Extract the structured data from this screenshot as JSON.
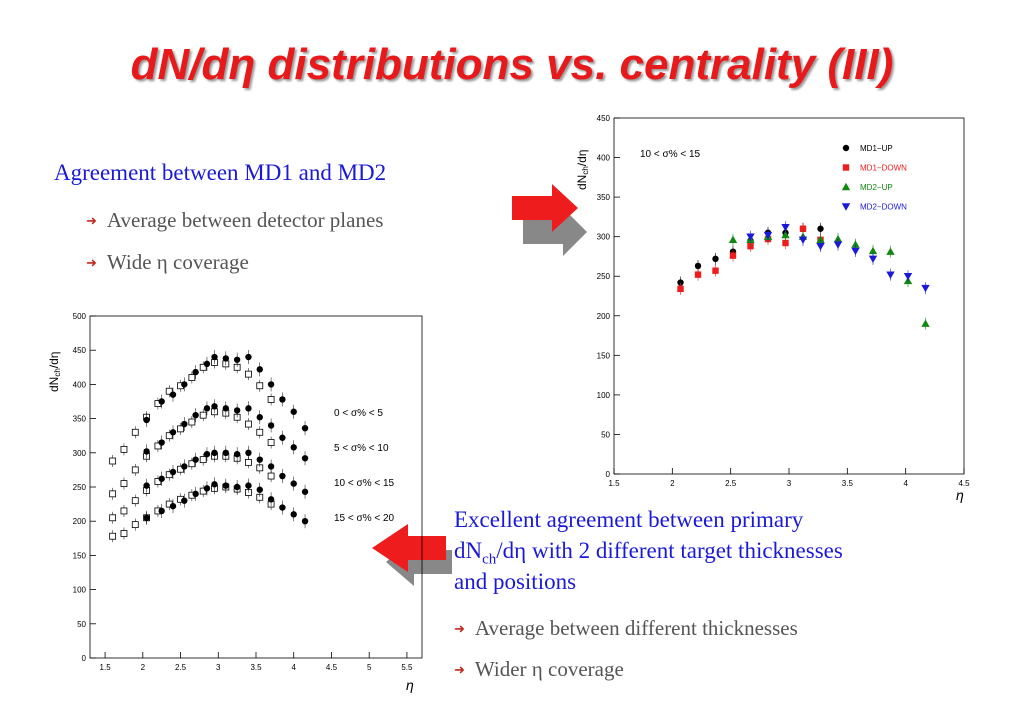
{
  "slide": {
    "title": "dN/dη distributions vs. centrality (III)",
    "text1": {
      "heading": "Agreement between MD1 and MD2",
      "bullets": [
        "Average between detector planes",
        "Wide η coverage"
      ]
    },
    "text2": {
      "heading_line1": "Excellent agreement between primary",
      "heading_line2_a": "dN",
      "heading_line2_sub": "ch",
      "heading_line2_b": "/dη with 2 different target thicknesses",
      "heading_line3": "and positions",
      "bullets": [
        "Average between different thicknesses",
        "Wider η coverage"
      ]
    },
    "colors": {
      "title": "#e8191a",
      "heading": "#1a1ad6",
      "bullet_text": "#555555",
      "arrow": "#ee1c1c",
      "arrow_shadow": "#888888"
    }
  },
  "chart_data": [
    {
      "type": "scatter",
      "ylabel_main": "dN",
      "ylabel_sub": "ch",
      "ylabel_tail": "/dη",
      "xlabel": "η",
      "xlim": [
        1.5,
        4.5
      ],
      "ylim": [
        0,
        450
      ],
      "xticks": [
        1.5,
        2,
        2.5,
        3,
        3.5,
        4,
        4.5
      ],
      "xtick_labels": [
        "1.5",
        "2",
        "2.5",
        "3",
        "3.5",
        "4",
        "4.5"
      ],
      "yticks": [
        0,
        50,
        100,
        150,
        200,
        250,
        300,
        350,
        400,
        450
      ],
      "ytick_labels": [
        "0",
        "50",
        "100",
        "150",
        "200",
        "250",
        "300",
        "350",
        "400",
        "450"
      ],
      "annotation": "10 < σ% < 15",
      "legend_position": "top-right",
      "series": [
        {
          "name": "MD1−UP",
          "color": "#000000",
          "marker": "circle",
          "x": [
            2.07,
            2.22,
            2.37,
            2.52,
            2.67,
            2.82,
            2.97,
            3.12,
            3.27
          ],
          "y": [
            242,
            263,
            272,
            281,
            295,
            305,
            305,
            310,
            310
          ]
        },
        {
          "name": "MD1−DOWN",
          "color": "#ee1c1c",
          "marker": "square",
          "x": [
            2.07,
            2.22,
            2.37,
            2.52,
            2.67,
            2.82,
            2.97,
            3.12,
            3.27
          ],
          "y": [
            234,
            252,
            257,
            276,
            288,
            297,
            292,
            310,
            296
          ]
        },
        {
          "name": "MD2−UP",
          "color": "#118811",
          "marker": "triangle-up",
          "x": [
            2.52,
            2.67,
            2.82,
            2.97,
            3.12,
            3.27,
            3.42,
            3.57,
            3.72,
            3.87,
            4.02,
            4.17
          ],
          "y": [
            296,
            296,
            300,
            302,
            300,
            296,
            297,
            290,
            282,
            281,
            244,
            190
          ]
        },
        {
          "name": "MD2−DOWN",
          "color": "#1a1ad6",
          "marker": "triangle-down",
          "x": [
            2.67,
            2.82,
            2.97,
            3.12,
            3.27,
            3.42,
            3.57,
            3.72,
            3.87,
            4.02,
            4.17
          ],
          "y": [
            300,
            302,
            312,
            296,
            288,
            290,
            282,
            272,
            252,
            250,
            235
          ]
        }
      ]
    },
    {
      "type": "scatter",
      "ylabel_main": "dN",
      "ylabel_sub": "ch",
      "ylabel_tail": "/dη",
      "xlabel": "η",
      "xlim": [
        1.3,
        5.7
      ],
      "ylim": [
        0,
        500
      ],
      "xticks": [
        1.5,
        2,
        2.5,
        3,
        3.5,
        4,
        4.5,
        5,
        5.5
      ],
      "xtick_labels": [
        "1.5",
        "2",
        "2.5",
        "3",
        "3.5",
        "4",
        "4.5",
        "5",
        "5.5"
      ],
      "yticks": [
        0,
        50,
        100,
        150,
        200,
        250,
        300,
        350,
        400,
        450,
        500
      ],
      "ytick_labels": [
        "0",
        "50",
        "100",
        "150",
        "200",
        "250",
        "300",
        "350",
        "400",
        "450",
        "500"
      ],
      "series": [
        {
          "name": "0 < σ% < 5",
          "open_x": [
            1.6,
            1.75,
            1.9,
            2.05,
            2.2,
            2.35,
            2.5,
            2.65,
            2.8,
            2.95,
            3.1,
            3.25,
            3.4,
            3.55,
            3.7
          ],
          "open_y": [
            288,
            305,
            330,
            352,
            372,
            390,
            398,
            410,
            425,
            432,
            430,
            425,
            415,
            398,
            378
          ],
          "filled_x": [
            2.05,
            2.25,
            2.4,
            2.55,
            2.7,
            2.85,
            2.95,
            3.1,
            3.25,
            3.4,
            3.55,
            3.7,
            3.85,
            4.0,
            4.15
          ],
          "filled_y": [
            348,
            375,
            385,
            400,
            418,
            430,
            440,
            438,
            436,
            440,
            422,
            400,
            378,
            360,
            336
          ]
        },
        {
          "name": "5 < σ% < 10",
          "open_x": [
            1.6,
            1.75,
            1.9,
            2.05,
            2.2,
            2.35,
            2.5,
            2.65,
            2.8,
            2.95,
            3.1,
            3.25,
            3.4,
            3.55,
            3.7
          ],
          "open_y": [
            240,
            255,
            275,
            295,
            310,
            325,
            335,
            345,
            355,
            360,
            358,
            352,
            342,
            330,
            315
          ],
          "filled_x": [
            2.05,
            2.25,
            2.4,
            2.55,
            2.7,
            2.85,
            2.95,
            3.1,
            3.25,
            3.4,
            3.55,
            3.7,
            3.85,
            4.0,
            4.15
          ],
          "filled_y": [
            302,
            315,
            330,
            342,
            355,
            365,
            368,
            365,
            362,
            365,
            352,
            340,
            322,
            308,
            292
          ]
        },
        {
          "name": "10 < σ% < 15",
          "open_x": [
            1.6,
            1.75,
            1.9,
            2.05,
            2.2,
            2.35,
            2.5,
            2.65,
            2.8,
            2.95,
            3.1,
            3.25,
            3.4,
            3.55,
            3.7
          ],
          "open_y": [
            205,
            215,
            230,
            245,
            258,
            268,
            276,
            284,
            290,
            295,
            295,
            292,
            286,
            278,
            266
          ],
          "filled_x": [
            2.05,
            2.25,
            2.4,
            2.55,
            2.7,
            2.85,
            2.95,
            3.1,
            3.25,
            3.4,
            3.55,
            3.7,
            3.85,
            4.0,
            4.15
          ],
          "filled_y": [
            252,
            262,
            272,
            280,
            290,
            298,
            300,
            300,
            298,
            300,
            290,
            280,
            266,
            255,
            243
          ]
        },
        {
          "name": "15 < σ% < 20",
          "open_x": [
            1.6,
            1.75,
            1.9,
            2.05,
            2.2,
            2.35,
            2.5,
            2.65,
            2.8,
            2.95,
            3.1,
            3.25,
            3.4,
            3.55,
            3.7
          ],
          "open_y": [
            178,
            182,
            195,
            205,
            215,
            225,
            232,
            238,
            244,
            248,
            250,
            247,
            242,
            235,
            225
          ],
          "filled_x": [
            2.05,
            2.25,
            2.4,
            2.55,
            2.7,
            2.85,
            2.95,
            3.1,
            3.25,
            3.4,
            3.55,
            3.7,
            3.85,
            4.0,
            4.15
          ],
          "filled_y": [
            205,
            215,
            222,
            230,
            240,
            248,
            254,
            252,
            250,
            252,
            246,
            232,
            220,
            210,
            200
          ]
        }
      ]
    }
  ]
}
